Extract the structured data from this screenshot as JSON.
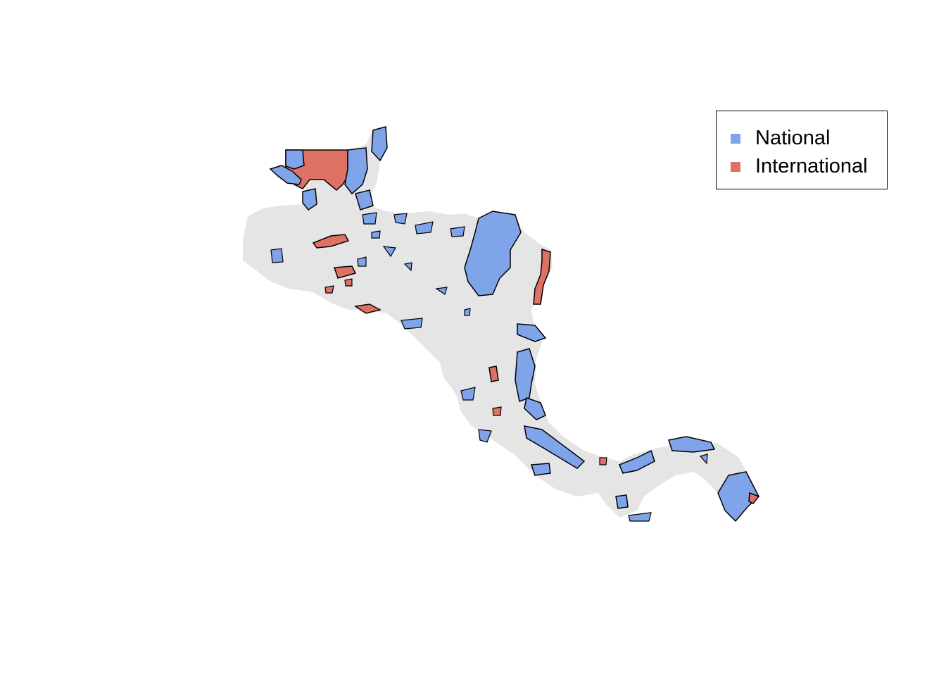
{
  "map": {
    "colors": {
      "land": "#e5e5e5",
      "national": "#7fa4ea",
      "international": "#dd7264",
      "outline": "#000000"
    }
  },
  "legend": {
    "items": [
      {
        "label": "National",
        "color": "#7fa4ea"
      },
      {
        "label": "International",
        "color": "#dd7264"
      }
    ]
  }
}
